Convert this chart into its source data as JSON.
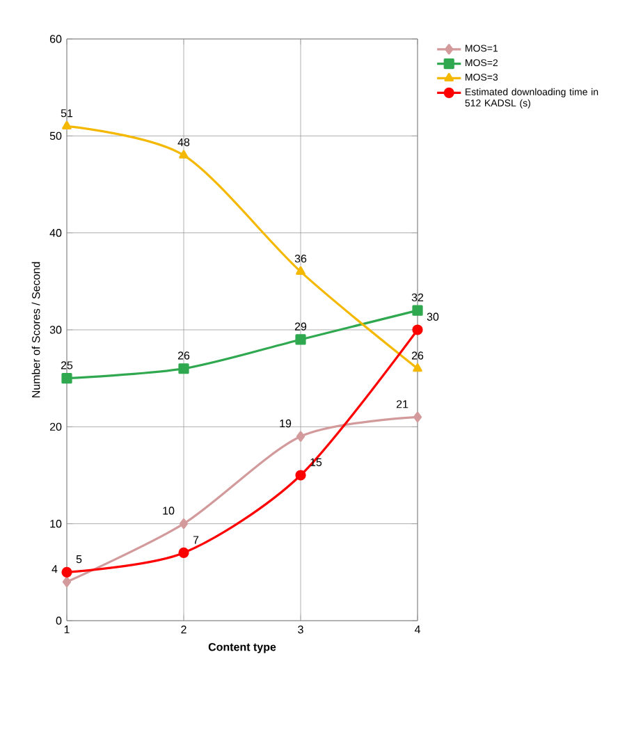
{
  "chart_data": {
    "type": "line",
    "xlabel": "Content type",
    "ylabel": "Number of Scores / Second",
    "x": [
      1,
      2,
      3,
      4
    ],
    "xlim": [
      1,
      4
    ],
    "xticks": [
      1,
      2,
      3,
      4
    ],
    "ylim": [
      0,
      60
    ],
    "yticks": [
      0,
      10,
      20,
      30,
      40,
      50,
      60
    ],
    "grid": true,
    "legend": "right",
    "data_labels": true,
    "line_style": "solid",
    "series": [
      {
        "name": "MOS=1",
        "color": "#d39a9c",
        "marker": "diamond",
        "values": [
          4,
          10,
          19,
          21
        ]
      },
      {
        "name": "MOS=2",
        "color": "#2fa84f",
        "marker": "square",
        "values": [
          25,
          26,
          29,
          32
        ]
      },
      {
        "name": "MOS=3",
        "color": "#f5b800",
        "marker": "triangle",
        "values": [
          51,
          48,
          36,
          26
        ]
      },
      {
        "name": "Estimated downloading time in 512 KADSL (s)",
        "color": "#ff0000",
        "marker": "circle",
        "values": [
          5,
          7,
          15,
          30
        ]
      }
    ]
  }
}
